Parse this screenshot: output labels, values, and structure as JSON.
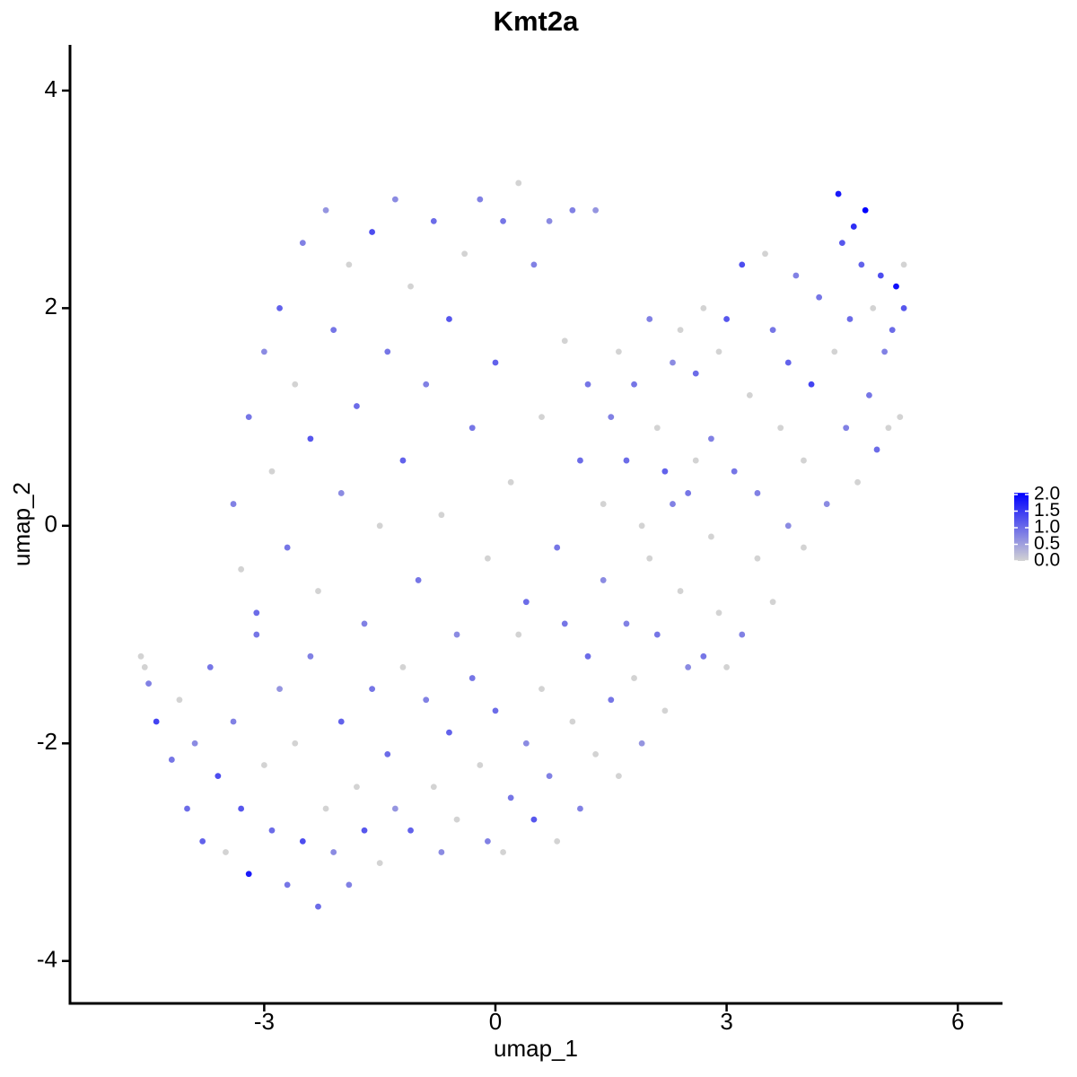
{
  "chart_data": {
    "type": "scatter",
    "title": "Kmt2a",
    "x_label": "umap_1",
    "y_label": "umap_2",
    "xlim": [
      -5.52,
      6.58
    ],
    "ylim": [
      -4.39,
      4.42
    ],
    "xticks": [
      -3,
      0,
      3,
      6
    ],
    "yticks": [
      -4,
      -2,
      0,
      2,
      4
    ],
    "low_color": "#d3d3d3",
    "high_color": "#0000ff",
    "color_lim": [
      0,
      2.05
    ],
    "colorbar_ticks": [
      {
        "value": 2,
        "label": "2.0"
      },
      {
        "value": 1.5,
        "label": "1.5"
      },
      {
        "value": 1,
        "label": "1.0"
      },
      {
        "value": 0.5,
        "label": "0.5"
      },
      {
        "value": 0,
        "label": "0.0"
      }
    ],
    "points": [
      [
        -4.6,
        -1.2,
        0
      ],
      [
        -4.55,
        -1.3,
        0
      ],
      [
        -4.5,
        -1.45,
        0.8
      ],
      [
        -4.4,
        -1.8,
        1.4
      ],
      [
        -4.2,
        -2.15,
        0.9
      ],
      [
        -4.1,
        -1.6,
        0
      ],
      [
        -4.0,
        -2.6,
        1.0
      ],
      [
        -3.9,
        -2.0,
        0.7
      ],
      [
        -3.8,
        -2.9,
        1.1
      ],
      [
        -3.7,
        -1.3,
        0.9
      ],
      [
        -3.6,
        -2.3,
        1.3
      ],
      [
        -3.5,
        -3.0,
        0
      ],
      [
        -3.4,
        -1.8,
        0.8
      ],
      [
        -3.3,
        -2.6,
        1.2
      ],
      [
        -3.2,
        -3.2,
        1.8
      ],
      [
        -3.1,
        -1.0,
        0.9
      ],
      [
        -3.0,
        -2.2,
        0
      ],
      [
        -2.9,
        -2.8,
        1.0
      ],
      [
        -2.8,
        -1.5,
        0.6
      ],
      [
        -2.7,
        -3.3,
        0.9
      ],
      [
        -2.6,
        -2.0,
        0
      ],
      [
        -2.5,
        -2.9,
        1.3
      ],
      [
        -2.4,
        -1.2,
        0.8
      ],
      [
        -2.3,
        -3.5,
        1.0
      ],
      [
        -2.2,
        -2.6,
        0
      ],
      [
        -2.1,
        -3.0,
        0.7
      ],
      [
        -2.0,
        -1.8,
        1.1
      ],
      [
        -1.9,
        -3.3,
        0.8
      ],
      [
        -1.8,
        -2.4,
        0
      ],
      [
        -1.7,
        -2.8,
        1.2
      ],
      [
        -1.6,
        -1.5,
        0.9
      ],
      [
        -1.5,
        -3.1,
        0
      ],
      [
        -1.4,
        -2.1,
        1.0
      ],
      [
        -1.3,
        -2.6,
        0.6
      ],
      [
        -1.2,
        -1.3,
        0
      ],
      [
        -1.1,
        -2.8,
        1.1
      ],
      [
        -3.4,
        0.2,
        0.8
      ],
      [
        -3.3,
        -0.4,
        0
      ],
      [
        -3.2,
        1.0,
        0.9
      ],
      [
        -3.1,
        -0.8,
        1.0
      ],
      [
        -3.0,
        1.6,
        0.7
      ],
      [
        -2.9,
        0.5,
        0
      ],
      [
        -2.8,
        2.0,
        1.1
      ],
      [
        -2.7,
        -0.2,
        0.9
      ],
      [
        -2.6,
        1.3,
        0
      ],
      [
        -2.5,
        2.6,
        0.8
      ],
      [
        -2.4,
        0.8,
        1.2
      ],
      [
        -2.3,
        -0.6,
        0
      ],
      [
        -2.2,
        2.9,
        0.6
      ],
      [
        -2.1,
        1.8,
        0.9
      ],
      [
        -2.0,
        0.3,
        0.7
      ],
      [
        -1.9,
        2.4,
        0
      ],
      [
        -1.8,
        1.1,
        1.0
      ],
      [
        -1.7,
        -0.9,
        0.8
      ],
      [
        -1.6,
        2.7,
        1.3
      ],
      [
        -1.5,
        0.0,
        0
      ],
      [
        -1.4,
        1.6,
        0.9
      ],
      [
        -1.3,
        3.0,
        0.7
      ],
      [
        -1.2,
        0.6,
        1.1
      ],
      [
        -1.1,
        2.2,
        0
      ],
      [
        -1.0,
        -0.5,
        0.9
      ],
      [
        -0.9,
        1.3,
        0.8
      ],
      [
        -0.8,
        2.8,
        1.0
      ],
      [
        -0.7,
        0.1,
        0
      ],
      [
        -0.6,
        1.9,
        1.2
      ],
      [
        -0.5,
        -1.0,
        0.7
      ],
      [
        -0.4,
        2.5,
        0
      ],
      [
        -0.3,
        0.9,
        0.9
      ],
      [
        -0.2,
        3.0,
        0.8
      ],
      [
        -0.1,
        -0.3,
        0
      ],
      [
        0.0,
        1.5,
        1.1
      ],
      [
        0.1,
        2.8,
        0.9
      ],
      [
        0.2,
        0.4,
        0
      ],
      [
        0.3,
        3.15,
        0
      ],
      [
        0.4,
        -0.7,
        1.0
      ],
      [
        0.5,
        2.4,
        0.8
      ],
      [
        0.6,
        1.0,
        0
      ],
      [
        0.7,
        2.8,
        0.7
      ],
      [
        0.8,
        -0.2,
        0.9
      ],
      [
        0.9,
        1.7,
        0
      ],
      [
        1.0,
        2.9,
        0.8
      ],
      [
        1.1,
        0.6,
        1.0
      ],
      [
        1.3,
        2.9,
        0.6
      ],
      [
        1.2,
        1.3,
        0.9
      ],
      [
        -0.9,
        -1.6,
        0.8
      ],
      [
        -0.8,
        -2.4,
        0
      ],
      [
        -0.7,
        -3.0,
        0.7
      ],
      [
        -0.6,
        -1.9,
        1.1
      ],
      [
        -0.5,
        -2.7,
        0
      ],
      [
        -0.3,
        -1.4,
        0.9
      ],
      [
        -0.2,
        -2.2,
        0
      ],
      [
        -0.1,
        -2.9,
        0.8
      ],
      [
        0.0,
        -1.7,
        1.0
      ],
      [
        0.1,
        -3.0,
        0
      ],
      [
        0.2,
        -2.5,
        0.9
      ],
      [
        0.3,
        -1.0,
        0
      ],
      [
        0.4,
        -2.0,
        0.7
      ],
      [
        0.5,
        -2.7,
        1.2
      ],
      [
        0.6,
        -1.5,
        0
      ],
      [
        0.7,
        -2.3,
        0.8
      ],
      [
        0.8,
        -2.9,
        0
      ],
      [
        0.9,
        -0.9,
        0.9
      ],
      [
        1.0,
        -1.8,
        0
      ],
      [
        1.1,
        -2.6,
        0.8
      ],
      [
        1.2,
        -1.2,
        1.0
      ],
      [
        1.3,
        -2.1,
        0
      ],
      [
        1.4,
        -0.5,
        0.7
      ],
      [
        1.5,
        -1.6,
        0.9
      ],
      [
        1.6,
        -2.3,
        0
      ],
      [
        1.7,
        -0.9,
        0.8
      ],
      [
        1.8,
        -1.4,
        0
      ],
      [
        1.9,
        -2.0,
        0.6
      ],
      [
        2.0,
        -0.3,
        0
      ],
      [
        2.1,
        -1.0,
        0.9
      ],
      [
        2.2,
        -1.7,
        0
      ],
      [
        2.3,
        0.2,
        0.8
      ],
      [
        2.4,
        -0.6,
        0
      ],
      [
        2.5,
        -1.3,
        0.7
      ],
      [
        2.6,
        0.6,
        0
      ],
      [
        2.7,
        -1.2,
        0.9
      ],
      [
        2.8,
        -0.1,
        0
      ],
      [
        2.9,
        -0.8,
        0
      ],
      [
        3.0,
        -1.3,
        0
      ],
      [
        3.2,
        -1.0,
        0.8
      ],
      [
        3.4,
        -0.3,
        0
      ],
      [
        3.6,
        -0.7,
        0
      ],
      [
        3.8,
        0.0,
        0.7
      ],
      [
        4.0,
        -0.2,
        0
      ],
      [
        1.4,
        0.2,
        0
      ],
      [
        1.5,
        1.0,
        0.8
      ],
      [
        1.6,
        1.6,
        0
      ],
      [
        1.7,
        0.6,
        1.0
      ],
      [
        1.8,
        1.3,
        0.9
      ],
      [
        1.9,
        0.0,
        0
      ],
      [
        2.0,
        1.9,
        0.8
      ],
      [
        2.1,
        0.9,
        0
      ],
      [
        2.2,
        0.5,
        1.1
      ],
      [
        2.3,
        1.5,
        0.7
      ],
      [
        2.4,
        1.8,
        0
      ],
      [
        2.5,
        0.3,
        0.9
      ],
      [
        2.6,
        1.4,
        1.0
      ],
      [
        2.7,
        2.0,
        0
      ],
      [
        2.8,
        0.8,
        0.8
      ],
      [
        2.9,
        1.6,
        0
      ],
      [
        3.0,
        1.9,
        1.2
      ],
      [
        3.1,
        0.5,
        0.9
      ],
      [
        3.2,
        2.4,
        1.3
      ],
      [
        3.3,
        1.2,
        0
      ],
      [
        3.4,
        0.3,
        0.8
      ],
      [
        3.5,
        2.5,
        0
      ],
      [
        3.6,
        1.8,
        0.9
      ],
      [
        3.7,
        0.9,
        0
      ],
      [
        3.8,
        1.5,
        1.1
      ],
      [
        3.9,
        2.3,
        0.8
      ],
      [
        4.0,
        0.6,
        0
      ],
      [
        4.1,
        1.3,
        1.4
      ],
      [
        4.2,
        2.1,
        0.9
      ],
      [
        4.3,
        0.2,
        0.7
      ],
      [
        4.4,
        1.6,
        0
      ],
      [
        4.45,
        3.05,
        1.8
      ],
      [
        4.5,
        2.6,
        1.2
      ],
      [
        4.55,
        0.9,
        0.8
      ],
      [
        4.6,
        1.9,
        1.0
      ],
      [
        4.65,
        2.75,
        1.6
      ],
      [
        4.7,
        0.4,
        0
      ],
      [
        4.75,
        2.4,
        1.1
      ],
      [
        4.8,
        2.9,
        2.05
      ],
      [
        4.85,
        1.2,
        0.9
      ],
      [
        4.9,
        2.0,
        0
      ],
      [
        4.95,
        0.7,
        1.0
      ],
      [
        5.0,
        2.3,
        1.3
      ],
      [
        5.05,
        1.6,
        0.8
      ],
      [
        5.1,
        0.9,
        0
      ],
      [
        5.15,
        1.8,
        1.0
      ],
      [
        5.2,
        2.2,
        1.9
      ],
      [
        5.25,
        1.0,
        0
      ],
      [
        5.3,
        2.0,
        1.2
      ],
      [
        5.3,
        2.4,
        0
      ]
    ]
  }
}
